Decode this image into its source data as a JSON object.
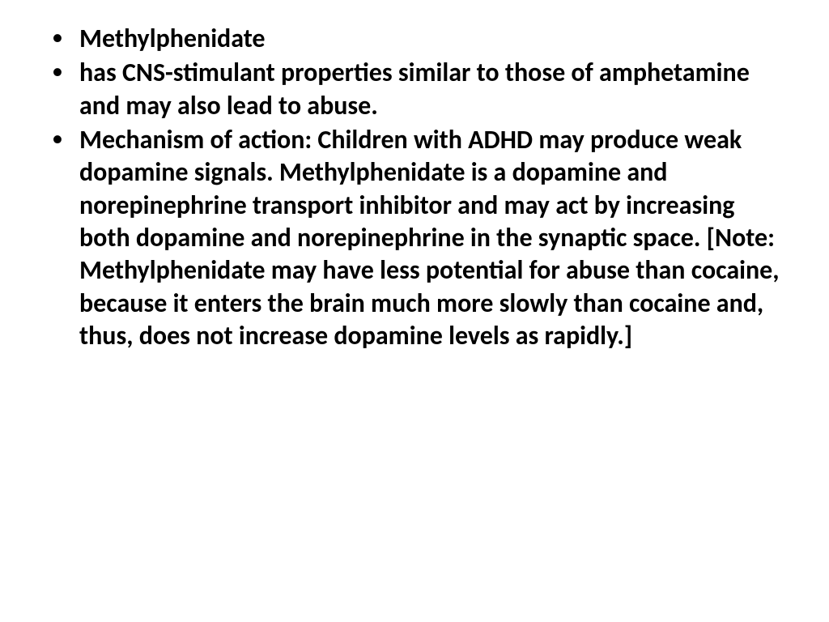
{
  "slide": {
    "background_color": "#ffffff",
    "text_color": "#000000",
    "font_family": "Calibri",
    "font_size_pt": 24,
    "font_weight": "bold",
    "line_height": 1.26,
    "bullet_char": "•",
    "bullets": [
      "Methylphenidate",
      " has CNS-stimulant properties similar to those of amphetamine and may also lead to abuse.",
      "Mechanism of action: Children with ADHD may produce weak dopamine signals. Methylphenidate is a dopamine and norepinephrine transport inhibitor and may act by increasing both dopamine and norepinephrine in the synaptic space. [Note: Methylphenidate may have less potential for abuse than cocaine, because it enters the brain much more slowly than cocaine and, thus, does not increase dopamine levels as rapidly.]"
    ]
  }
}
